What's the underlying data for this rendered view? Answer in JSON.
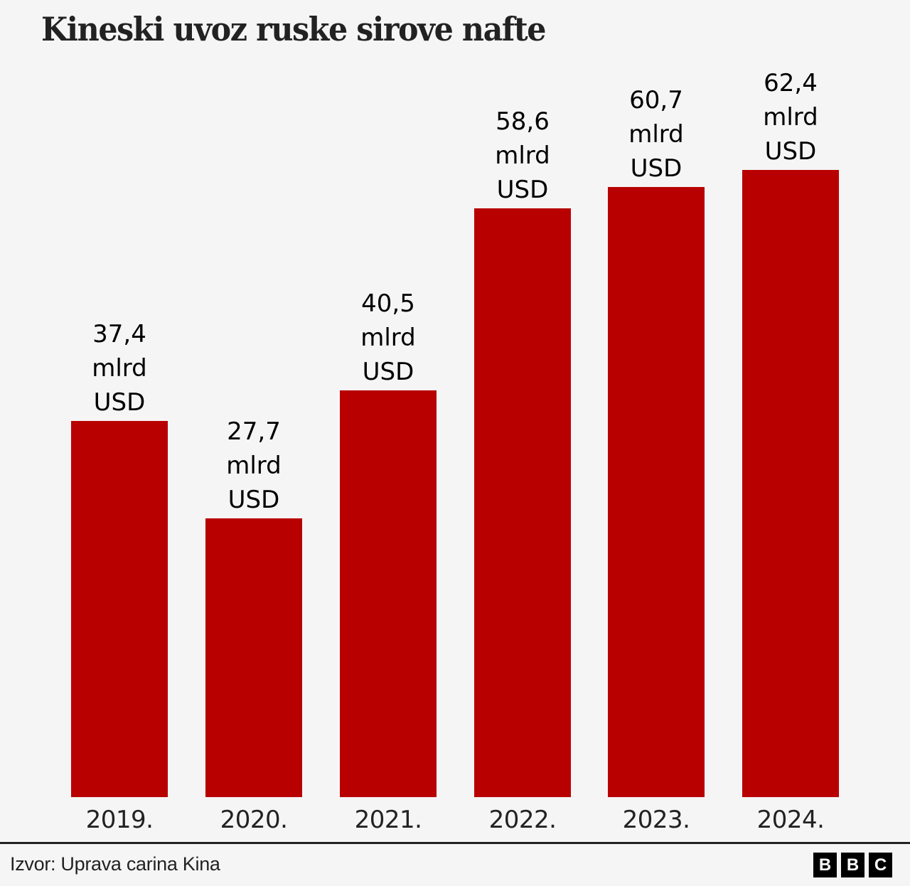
{
  "header": {
    "title": "Kineski uvoz ruske sirove nafte"
  },
  "footer": {
    "source": "Izvor: Uprava carina Kina",
    "logo_letters": [
      "B",
      "B",
      "C"
    ]
  },
  "colors": {
    "bar": "#b80000",
    "background": "#f5f5f5",
    "text": "#222222"
  },
  "bars": [
    {
      "year": "2019.",
      "value": "37,4",
      "unit1": "mlrd",
      "unit2": "USD"
    },
    {
      "year": "2020.",
      "value": "27,7",
      "unit1": "mlrd",
      "unit2": "USD"
    },
    {
      "year": "2021.",
      "value": "40,5",
      "unit1": "mlrd",
      "unit2": "USD"
    },
    {
      "year": "2022.",
      "value": "58,6",
      "unit1": "mlrd",
      "unit2": "USD"
    },
    {
      "year": "2023.",
      "value": "60,7",
      "unit1": "mlrd",
      "unit2": "USD"
    },
    {
      "year": "2024.",
      "value": "62,4",
      "unit1": "mlrd",
      "unit2": "USD"
    }
  ],
  "chart_data": {
    "type": "bar",
    "title": "Kineski uvoz ruske sirove nafte",
    "categories": [
      "2019.",
      "2020.",
      "2021.",
      "2022.",
      "2023.",
      "2024."
    ],
    "values": [
      37.4,
      27.7,
      40.5,
      58.6,
      60.7,
      62.4
    ],
    "unit": "mlrd USD",
    "data_labels": [
      "37,4 mlrd USD",
      "27,7 mlrd USD",
      "40,5 mlrd USD",
      "58,6 mlrd USD",
      "60,7 mlrd USD",
      "62,4 mlrd USD"
    ],
    "xlabel": "",
    "ylabel": "",
    "ylim": [
      0,
      62.4
    ],
    "grid": false,
    "legend": null,
    "source": "Izvor: Uprava carina Kina"
  }
}
